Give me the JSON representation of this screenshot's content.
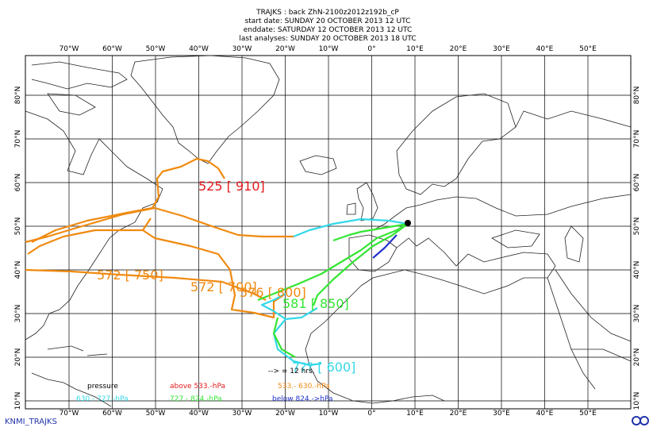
{
  "header": {
    "title": "TRAJKS : back ZhN-2100z2012z192b_cP",
    "start_date": "start date:  SUNDAY    20 OCTOBER    2013 12 UTC",
    "end_date": "enddate:  SATURDAY  12 OCTOBER    2013 12 UTC",
    "last_analyses": "last analyses:  SUNDAY    20 OCTOBER    2013 18 UTC"
  },
  "map": {
    "lon_labels": [
      "70°W",
      "60°W",
      "50°W",
      "40°W",
      "30°W",
      "20°W",
      "10°W",
      "0°",
      "10°E",
      "20°E",
      "30°E",
      "40°E",
      "50°E"
    ],
    "lat_labels": [
      "80°N",
      "70°N",
      "60°N",
      "50°N",
      "40°N",
      "30°N",
      "20°N",
      "10°N"
    ]
  },
  "trajectory_labels": [
    "525 [ 910]",
    "572 [ 750]",
    "572 [ 700]",
    "576 [ 800]",
    "581 [ 850]",
    "7?? [ 600]"
  ],
  "legend": {
    "pressure": "pressure",
    "above": "above   533.-hPa",
    "band2": "533.-      630.-hPa",
    "band3": "630.-   727.-hPa",
    "band4": "727.-   824.-hPa",
    "below": "below   824.->hPa",
    "arrow": "--> = 12 hrs."
  },
  "footer": "KNMI_TRAJKS"
}
